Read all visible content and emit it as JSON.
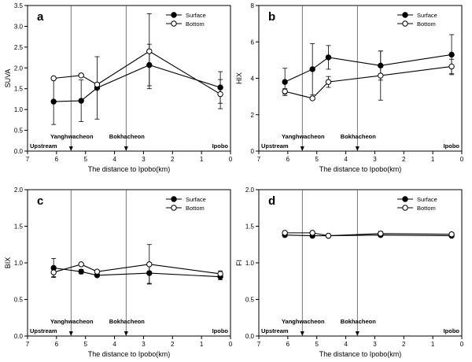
{
  "chart_data": [
    {
      "type": "line",
      "panel_label": "a",
      "xlabel": "The distance to Ipobo(km)",
      "ylabel": "SUVA",
      "xlim": [
        7,
        0
      ],
      "ylim": [
        0,
        3.5
      ],
      "xticks": [
        "7",
        "6",
        "5",
        "4",
        "3",
        "2",
        "1",
        "0"
      ],
      "yticks": [
        "0.0",
        "0.5",
        "1.0",
        "1.5",
        "2.0",
        "2.5",
        "3.0",
        "3.5"
      ],
      "grid": false,
      "legend_position": "top-right",
      "markers": [
        {
          "x": 5.5,
          "label": "Yanghwacheon"
        },
        {
          "x": 3.6,
          "label": "Bokhacheon"
        }
      ],
      "annotations": [
        {
          "text": "Upstream",
          "anchor": "bottom-left"
        },
        {
          "text": "Ipobo",
          "anchor": "bottom-right"
        }
      ],
      "series": [
        {
          "name": "Surface",
          "marker": "filled",
          "x": [
            6.1,
            5.15,
            4.6,
            2.8,
            0.35
          ],
          "y": [
            1.19,
            1.21,
            1.52,
            2.07,
            1.53
          ],
          "err": [
            0.55,
            0.5,
            0.75,
            0.5,
            0.38
          ]
        },
        {
          "name": "Bottom",
          "marker": "open",
          "x": [
            6.1,
            5.15,
            4.6,
            2.8,
            0.35
          ],
          "y": [
            1.75,
            1.82,
            1.6,
            2.4,
            1.37
          ],
          "err": [
            0.0,
            0.0,
            0.0,
            0.9,
            0.35
          ]
        }
      ]
    },
    {
      "type": "line",
      "panel_label": "b",
      "xlabel": "The distance to Ipobo(km)",
      "ylabel": "HIX",
      "xlim": [
        7,
        0
      ],
      "ylim": [
        0,
        8
      ],
      "xticks": [
        "7",
        "6",
        "5",
        "4",
        "3",
        "2",
        "1",
        "0"
      ],
      "yticks": [
        "0",
        "2",
        "4",
        "6",
        "8"
      ],
      "grid": false,
      "legend_position": "top-right",
      "markers": [
        {
          "x": 5.5,
          "label": "Yanghwacheon"
        },
        {
          "x": 3.6,
          "label": "Bokhacheon"
        }
      ],
      "annotations": [
        {
          "text": "Upstream",
          "anchor": "bottom-left"
        },
        {
          "text": "Ipobo",
          "anchor": "bottom-right"
        }
      ],
      "series": [
        {
          "name": "Surface",
          "marker": "filled",
          "x": [
            6.1,
            5.15,
            4.6,
            2.8,
            0.35
          ],
          "y": [
            3.8,
            4.5,
            5.15,
            4.7,
            5.3
          ],
          "err": [
            0.75,
            1.4,
            0.65,
            0.8,
            1.1
          ]
        },
        {
          "name": "Bottom",
          "marker": "open",
          "x": [
            6.1,
            5.15,
            4.6,
            2.8,
            0.35
          ],
          "y": [
            3.28,
            2.9,
            3.8,
            4.15,
            4.65
          ],
          "err": [
            0.15,
            0.0,
            0.3,
            1.35,
            0.4
          ]
        }
      ]
    },
    {
      "type": "line",
      "panel_label": "c",
      "xlabel": "The distance to Ipobo(km)",
      "ylabel": "BIX",
      "xlim": [
        7,
        0
      ],
      "ylim": [
        0,
        2.0
      ],
      "xticks": [
        "7",
        "6",
        "5",
        "4",
        "3",
        "2",
        "1",
        "0"
      ],
      "yticks": [
        "0.0",
        "0.5",
        "1.0",
        "1.5",
        "2.0"
      ],
      "grid": false,
      "legend_position": "top-right",
      "markers": [
        {
          "x": 5.5,
          "label": "Yanghwacheon"
        },
        {
          "x": 3.6,
          "label": "Bokhacheon"
        }
      ],
      "annotations": [
        {
          "text": "Upstream",
          "anchor": "bottom-left"
        },
        {
          "text": "Ipobo",
          "anchor": "bottom-right"
        }
      ],
      "series": [
        {
          "name": "Surface",
          "marker": "filled",
          "x": [
            6.1,
            5.15,
            4.6,
            2.8,
            0.35
          ],
          "y": [
            0.93,
            0.88,
            0.83,
            0.86,
            0.81
          ],
          "err": [
            0.13,
            0.03,
            0.02,
            0.14,
            0.04
          ]
        },
        {
          "name": "Bottom",
          "marker": "open",
          "x": [
            6.1,
            5.15,
            4.6,
            2.8,
            0.35
          ],
          "y": [
            0.87,
            0.98,
            0.88,
            0.98,
            0.85
          ],
          "err": [
            0.06,
            0.0,
            0.0,
            0.27,
            0.04
          ]
        }
      ]
    },
    {
      "type": "line",
      "panel_label": "d",
      "xlabel": "The distance to Ipobo(km)",
      "ylabel": "FI",
      "xlim": [
        7,
        0
      ],
      "ylim": [
        0,
        2.0
      ],
      "xticks": [
        "7",
        "6",
        "5",
        "4",
        "3",
        "2",
        "1",
        "0"
      ],
      "yticks": [
        "0.0",
        "0.5",
        "1.0",
        "1.5",
        "2.0"
      ],
      "grid": false,
      "legend_position": "top-right",
      "markers": [
        {
          "x": 5.5,
          "label": "Yanghwacheon"
        },
        {
          "x": 3.6,
          "label": "Bokhacheon"
        }
      ],
      "annotations": [
        {
          "text": "Upstream",
          "anchor": "bottom-left"
        },
        {
          "text": "Ipobo",
          "anchor": "bottom-right"
        }
      ],
      "series": [
        {
          "name": "Surface",
          "marker": "filled",
          "x": [
            6.1,
            5.15,
            4.6,
            2.8,
            0.35
          ],
          "y": [
            1.38,
            1.37,
            1.37,
            1.38,
            1.37
          ],
          "err": [
            0.01,
            0.01,
            0.01,
            0.02,
            0.02
          ]
        },
        {
          "name": "Bottom",
          "marker": "open",
          "x": [
            6.1,
            5.15,
            4.6,
            2.8,
            0.35
          ],
          "y": [
            1.41,
            1.41,
            1.37,
            1.4,
            1.39
          ],
          "err": [
            0.02,
            0.01,
            0.01,
            0.03,
            0.02
          ]
        }
      ]
    }
  ]
}
